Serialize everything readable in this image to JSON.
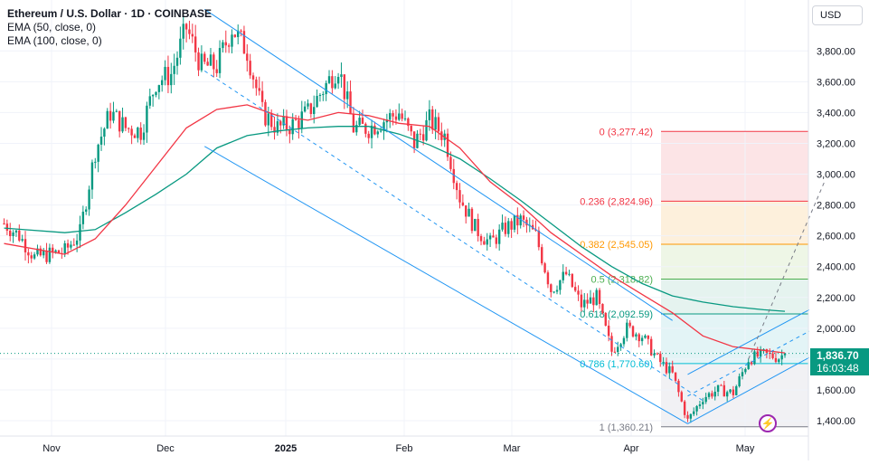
{
  "legend": {
    "title": "Ethereum / U.S. Dollar · 1D · COINBASE",
    "ema50": "EMA (50, close, 0)",
    "ema100": "EMA (100, close, 0)"
  },
  "currency_button": "USD",
  "last_price": {
    "value": "1,836.70",
    "countdown": "16:03:48",
    "color": "#089981"
  },
  "colors": {
    "up": "#089981",
    "down": "#f23645",
    "ema50": "#f23645",
    "ema100": "#089981",
    "channel": "#2196f3",
    "trend": "#787b86"
  },
  "chart_data": {
    "type": "candlestick",
    "title": "Ethereum / U.S. Dollar · 1D · COINBASE",
    "x_axis": {
      "ticks": [
        "Nov",
        "Dec",
        "2025",
        "Feb",
        "Mar",
        "Apr",
        "May"
      ]
    },
    "y_axis": {
      "range": [
        1250,
        4100
      ],
      "ticks": [
        "1,400.00",
        "1,600.00",
        "1,800.00",
        "2,000.00",
        "2,200.00",
        "2,400.00",
        "2,600.00",
        "2,800.00",
        "3,000.00",
        "3,200.00",
        "3,400.00",
        "3,600.00",
        "3,800.00"
      ]
    },
    "price_path": [
      [
        0,
        2680
      ],
      [
        5,
        2600
      ],
      [
        10,
        2460
      ],
      [
        15,
        2480
      ],
      [
        20,
        2500
      ],
      [
        25,
        2620
      ],
      [
        30,
        3150
      ],
      [
        35,
        3400
      ],
      [
        40,
        3300
      ],
      [
        45,
        3280
      ],
      [
        50,
        3600
      ],
      [
        55,
        3650
      ],
      [
        60,
        3950
      ],
      [
        65,
        3700
      ],
      [
        70,
        3700
      ],
      [
        75,
        3950
      ],
      [
        80,
        3800
      ],
      [
        85,
        3400
      ],
      [
        90,
        3300
      ],
      [
        95,
        3320
      ],
      [
        100,
        3400
      ],
      [
        105,
        3550
      ],
      [
        110,
        3700
      ],
      [
        115,
        3300
      ],
      [
        120,
        3300
      ],
      [
        125,
        3350
      ],
      [
        130,
        3400
      ],
      [
        135,
        3200
      ],
      [
        140,
        3350
      ],
      [
        145,
        3250
      ],
      [
        150,
        2850
      ],
      [
        155,
        2650
      ],
      [
        160,
        2550
      ],
      [
        165,
        2650
      ],
      [
        170,
        2700
      ],
      [
        175,
        2600
      ],
      [
        180,
        2250
      ],
      [
        185,
        2350
      ],
      [
        190,
        2150
      ],
      [
        195,
        2200
      ],
      [
        200,
        1850
      ],
      [
        205,
        2000
      ],
      [
        210,
        1950
      ],
      [
        215,
        1800
      ],
      [
        220,
        1700
      ],
      [
        225,
        1400
      ],
      [
        230,
        1550
      ],
      [
        235,
        1600
      ],
      [
        240,
        1580
      ],
      [
        245,
        1800
      ],
      [
        250,
        1830
      ],
      [
        255,
        1810
      ],
      [
        257,
        1836.7
      ]
    ],
    "ema50": [
      [
        0,
        2550
      ],
      [
        20,
        2480
      ],
      [
        30,
        2580
      ],
      [
        40,
        2800
      ],
      [
        50,
        3050
      ],
      [
        60,
        3300
      ],
      [
        70,
        3420
      ],
      [
        80,
        3450
      ],
      [
        90,
        3380
      ],
      [
        100,
        3350
      ],
      [
        110,
        3400
      ],
      [
        120,
        3380
      ],
      [
        130,
        3330
      ],
      [
        140,
        3310
      ],
      [
        150,
        3170
      ],
      [
        160,
        2950
      ],
      [
        170,
        2800
      ],
      [
        180,
        2620
      ],
      [
        190,
        2480
      ],
      [
        200,
        2340
      ],
      [
        210,
        2220
      ],
      [
        220,
        2100
      ],
      [
        230,
        1950
      ],
      [
        240,
        1880
      ],
      [
        250,
        1856
      ],
      [
        257,
        1840
      ]
    ],
    "ema100": [
      [
        0,
        2650
      ],
      [
        20,
        2620
      ],
      [
        30,
        2640
      ],
      [
        40,
        2750
      ],
      [
        50,
        2870
      ],
      [
        60,
        3000
      ],
      [
        70,
        3170
      ],
      [
        80,
        3250
      ],
      [
        90,
        3280
      ],
      [
        100,
        3300
      ],
      [
        110,
        3310
      ],
      [
        120,
        3310
      ],
      [
        130,
        3260
      ],
      [
        140,
        3190
      ],
      [
        150,
        3100
      ],
      [
        160,
        2970
      ],
      [
        170,
        2830
      ],
      [
        180,
        2680
      ],
      [
        190,
        2530
      ],
      [
        200,
        2400
      ],
      [
        210,
        2290
      ],
      [
        220,
        2210
      ],
      [
        230,
        2170
      ],
      [
        240,
        2140
      ],
      [
        250,
        2120
      ],
      [
        257,
        2110
      ]
    ],
    "fibonacci": {
      "levels": [
        {
          "label": "0 (3,277.42)",
          "price": 3277.42,
          "color": "#f23645"
        },
        {
          "label": "0.236 (2,824.96)",
          "price": 2824.96,
          "color": "#f23645"
        },
        {
          "label": "0.382 (2,545.05)",
          "price": 2545.05,
          "color": "#ff9800"
        },
        {
          "label": "0.5 (2,318.82)",
          "price": 2318.82,
          "color": "#4caf50"
        },
        {
          "label": "0.618 (2,092.59)",
          "price": 2092.59,
          "color": "#089981"
        },
        {
          "label": "0.786 (1,770.60)",
          "price": 1770.6,
          "color": "#00bcd4"
        },
        {
          "label": "1 (1,360.21)",
          "price": 1360.21,
          "color": "#787b86"
        }
      ],
      "fills": [
        "#fce4e6",
        "#fdf0dc",
        "#eef6e6",
        "#e5f3ef",
        "#e3f4f6",
        "#f1f1f4"
      ]
    },
    "channels": {
      "large": {
        "top": [
          [
            66,
            4070
          ],
          [
            220,
            2050
          ]
        ],
        "mid": [
          [
            66,
            3670
          ],
          [
            230,
            1530
          ]
        ],
        "bottom": [
          [
            66,
            3180
          ],
          [
            225,
            1380
          ]
        ]
      },
      "small": {
        "top": [
          [
            225,
            1700
          ],
          [
            265,
            2120
          ]
        ],
        "mid": [
          [
            225,
            1560
          ],
          [
            265,
            1980
          ]
        ],
        "bottom": [
          [
            225,
            1380
          ],
          [
            265,
            1810
          ]
        ]
      }
    },
    "trend_projection": [
      [
        245,
        1800
      ],
      [
        270,
        2950
      ]
    ]
  }
}
